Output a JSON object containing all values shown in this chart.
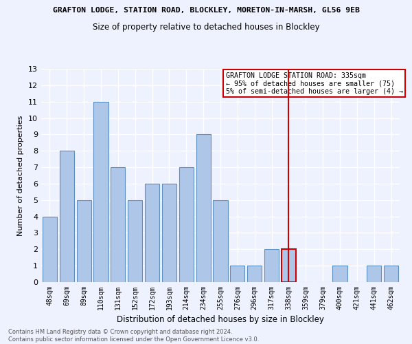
{
  "title": "GRAFTON LODGE, STATION ROAD, BLOCKLEY, MORETON-IN-MARSH, GL56 9EB",
  "subtitle": "Size of property relative to detached houses in Blockley",
  "xlabel": "Distribution of detached houses by size in Blockley",
  "ylabel": "Number of detached properties",
  "categories": [
    "48sqm",
    "69sqm",
    "89sqm",
    "110sqm",
    "131sqm",
    "152sqm",
    "172sqm",
    "193sqm",
    "214sqm",
    "234sqm",
    "255sqm",
    "276sqm",
    "296sqm",
    "317sqm",
    "338sqm",
    "359sqm",
    "379sqm",
    "400sqm",
    "421sqm",
    "441sqm",
    "462sqm"
  ],
  "values": [
    4,
    8,
    5,
    11,
    7,
    5,
    6,
    6,
    7,
    9,
    5,
    1,
    1,
    2,
    2,
    0,
    0,
    1,
    0,
    1,
    1
  ],
  "bar_color": "#aec6e8",
  "bar_edge_color": "#5a8fc0",
  "highlight_index": 14,
  "highlight_line_color": "#cc0000",
  "ylim": [
    0,
    13
  ],
  "yticks": [
    0,
    1,
    2,
    3,
    4,
    5,
    6,
    7,
    8,
    9,
    10,
    11,
    12,
    13
  ],
  "annotation_text": "GRAFTON LODGE STATION ROAD: 335sqm\n← 95% of detached houses are smaller (75)\n5% of semi-detached houses are larger (4) →",
  "annotation_box_color": "#cc0000",
  "footer": "Contains HM Land Registry data © Crown copyright and database right 2024.\nContains public sector information licensed under the Open Government Licence v3.0.",
  "bg_color": "#eef2ff",
  "grid_color": "#ffffff"
}
